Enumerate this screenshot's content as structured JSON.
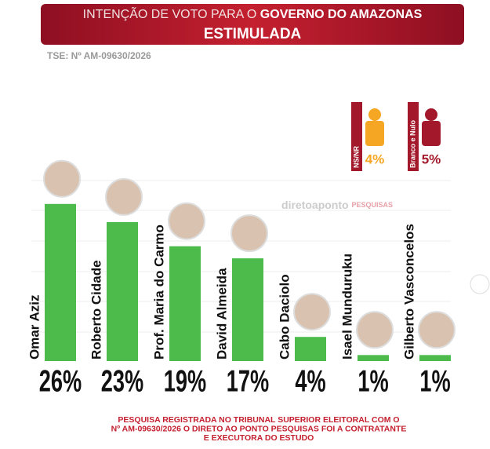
{
  "chart_data": {
    "type": "bar",
    "title_prefix": "INTENÇÃO DE VOTO PARA O",
    "title_emphasis": "GOVERNO DO AMAZONAS",
    "subtitle": "ESTIMULADA",
    "registration": "TSE: Nº AM-09630/2026",
    "categories": [
      "Omar Aziz",
      "Roberto Cidade",
      "Prof. Maria do Carmo",
      "David Almeida",
      "Cabo Daciolo",
      "Isael Munduruku",
      "Gilberto Vasconcelos"
    ],
    "values": [
      26,
      23,
      19,
      17,
      4,
      1,
      1
    ],
    "value_labels": [
      "26%",
      "23%",
      "19%",
      "17%",
      "4%",
      "1%",
      "1%"
    ],
    "color": "#4cbb4c",
    "others": [
      {
        "name": "NS/NR",
        "value": 4,
        "value_label": "4%",
        "color": "#f5a623"
      },
      {
        "name": "Branco e Nulo",
        "value": 5,
        "value_label": "5%",
        "color": "#a3192b"
      }
    ],
    "watermark": "diretoaponto",
    "watermark_badge": "PESQUISAS",
    "footer": [
      "PESQUISA REGISTRADA NO TRIBUNAL SUPERIOR ELEITORAL COM O",
      "Nº AM-09630/2026 O DIRETO AO PONTO PESQUISAS FOI A CONTRATANTE",
      "E EXECUTORA DO ESTUDO"
    ]
  }
}
